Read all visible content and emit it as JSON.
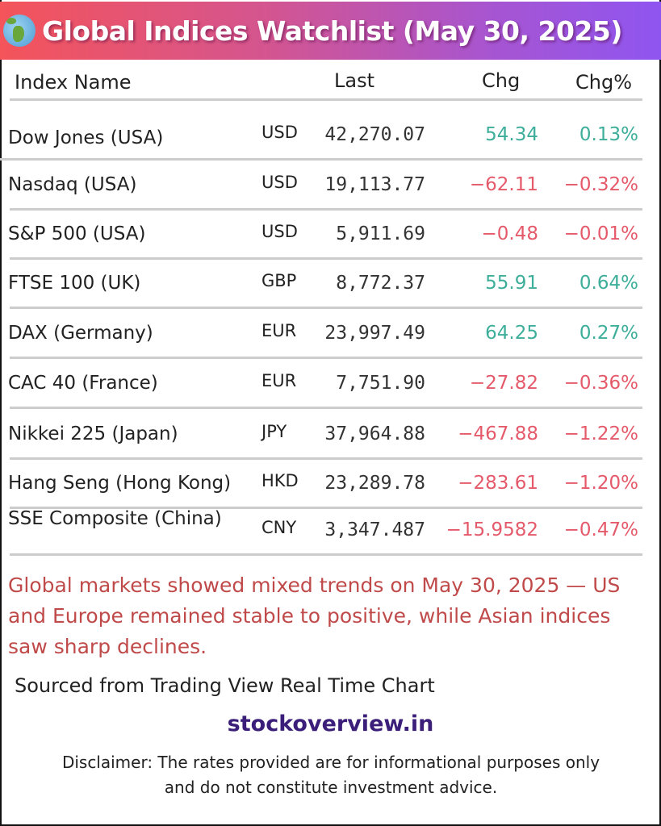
{
  "header": {
    "title": "Global Indices Watchlist (May 30, 2025)",
    "icon": "globe-icon"
  },
  "columns": {
    "name": "Index Name",
    "last": "Last",
    "chg": "Chg",
    "pct": "Chg%"
  },
  "rows": [
    {
      "name": "Dow Jones (USA)",
      "cur": "USD",
      "last": "42,270.07",
      "chg": "54.34",
      "pct": "0.13%",
      "dir": "pos"
    },
    {
      "name": "Nasdaq (USA)",
      "cur": "USD",
      "last": "19,113.77",
      "chg": "−62.11",
      "pct": "−0.32%",
      "dir": "neg"
    },
    {
      "name": "S&P 500 (USA)",
      "cur": "USD",
      "last": "5,911.69",
      "chg": "−0.48",
      "pct": "−0.01%",
      "dir": "neg"
    },
    {
      "name": "FTSE 100 (UK)",
      "cur": "GBP",
      "last": "8,772.37",
      "chg": "55.91",
      "pct": "0.64%",
      "dir": "pos"
    },
    {
      "name": "DAX (Germany)",
      "cur": "EUR",
      "last": "23,997.49",
      "chg": "64.25",
      "pct": "0.27%",
      "dir": "pos"
    },
    {
      "name": "CAC 40 (France)",
      "cur": "EUR",
      "last": "7,751.90",
      "chg": "−27.82",
      "pct": "−0.36%",
      "dir": "neg"
    },
    {
      "name": "Nikkei 225 (Japan)",
      "cur": "JPY",
      "last": "37,964.88",
      "chg": "−467.88",
      "pct": "−1.22%",
      "dir": "neg"
    },
    {
      "name": "Hang Seng (Hong Kong)",
      "cur": "HKD",
      "last": "23,289.78",
      "chg": "−283.61",
      "pct": "−1.20%",
      "dir": "neg"
    },
    {
      "name": "SSE Composite (China)",
      "cur": "CNY",
      "last": "3,347.487",
      "chg": "−15.9582",
      "pct": "−0.47%",
      "dir": "neg"
    }
  ],
  "summary": "Global markets showed mixed trends on May 30, 2025 — US and Europe remained stable to positive, while Asian indices saw sharp declines.",
  "source": "Sourced from Trading View Real Time Chart",
  "site": "stockoverview.in",
  "disclaimer": "Disclaimer: The rates provided are for informational purposes only and do not constitute investment advice.",
  "colors": {
    "positive": "#3dae9a",
    "negative": "#e55a6a",
    "summary": "#c04a4a",
    "site": "#3b1e7a"
  }
}
